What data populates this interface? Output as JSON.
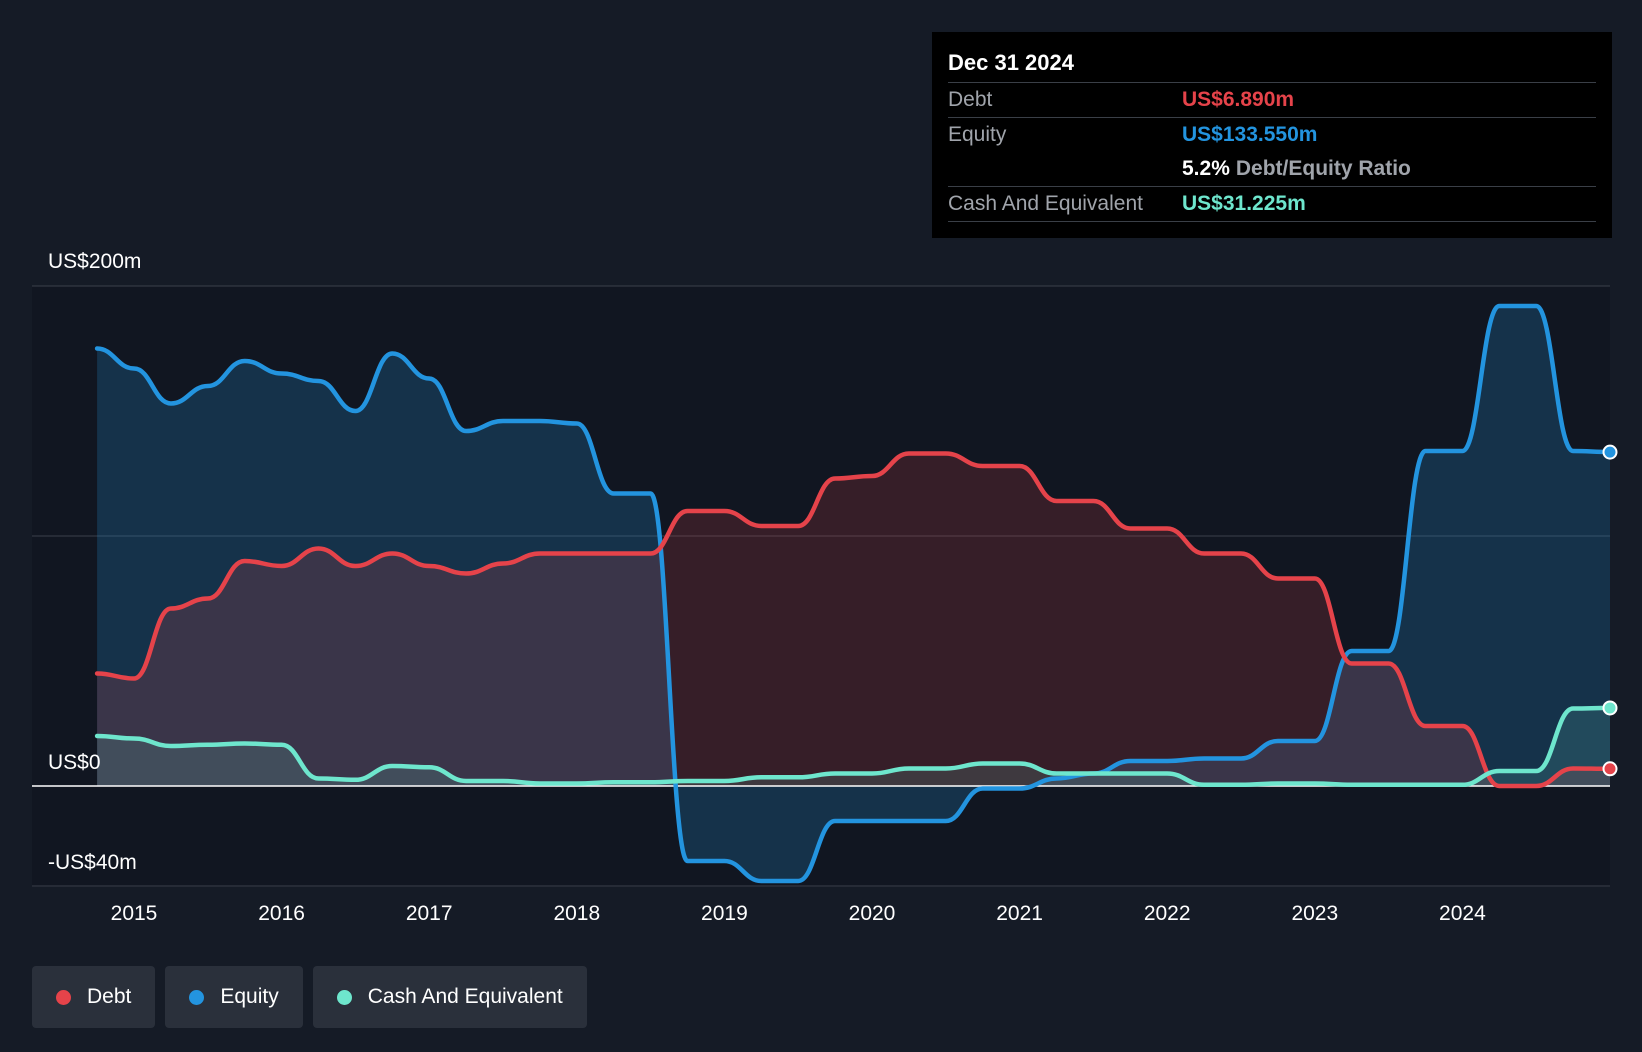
{
  "tooltip": {
    "date": "Dec 31 2024",
    "debt_label": "Debt",
    "debt_value": "US$6.890m",
    "equity_label": "Equity",
    "equity_value": "US$133.550m",
    "ratio_value": "5.2%",
    "ratio_label": "Debt/Equity Ratio",
    "cash_label": "Cash And Equivalent",
    "cash_value": "US$31.225m"
  },
  "axis": {
    "y_top_label": "US$200m",
    "y_zero_label": "US$0",
    "y_bottom_label": "-US$40m"
  },
  "legend": [
    {
      "label": "Debt"
    },
    {
      "label": "Equity"
    },
    {
      "label": "Cash And Equivalent"
    }
  ],
  "colors": {
    "debt": "#e5434a",
    "equity": "#2394df",
    "cash": "#6ee6cd",
    "background": "#151b26"
  },
  "chart_data": {
    "type": "area",
    "x_ticks": [
      2015,
      2016,
      2017,
      2018,
      2019,
      2020,
      2021,
      2022,
      2023,
      2024
    ],
    "ylim": [
      -40,
      200
    ],
    "y_ticks": [
      -40,
      0,
      100,
      200
    ],
    "grid": true,
    "legend_position": "bottom-left",
    "series": [
      {
        "name": "Debt",
        "points": [
          [
            2014.75,
            45
          ],
          [
            2015.0,
            43
          ],
          [
            2015.25,
            71
          ],
          [
            2015.5,
            75
          ],
          [
            2015.75,
            90
          ],
          [
            2016.0,
            88
          ],
          [
            2016.25,
            95
          ],
          [
            2016.5,
            88
          ],
          [
            2016.75,
            93
          ],
          [
            2017.0,
            88
          ],
          [
            2017.25,
            85
          ],
          [
            2017.5,
            89
          ],
          [
            2017.75,
            93
          ],
          [
            2018.0,
            93
          ],
          [
            2018.25,
            93
          ],
          [
            2018.5,
            93
          ],
          [
            2018.75,
            110
          ],
          [
            2019.0,
            110
          ],
          [
            2019.25,
            104
          ],
          [
            2019.5,
            104
          ],
          [
            2019.75,
            123
          ],
          [
            2020.0,
            124
          ],
          [
            2020.25,
            133
          ],
          [
            2020.5,
            133
          ],
          [
            2020.75,
            128
          ],
          [
            2021.0,
            128
          ],
          [
            2021.25,
            114
          ],
          [
            2021.5,
            114
          ],
          [
            2021.75,
            103
          ],
          [
            2022.0,
            103
          ],
          [
            2022.25,
            93
          ],
          [
            2022.5,
            93
          ],
          [
            2022.75,
            83
          ],
          [
            2023.0,
            83
          ],
          [
            2023.25,
            49
          ],
          [
            2023.5,
            49
          ],
          [
            2023.75,
            24
          ],
          [
            2024.0,
            24
          ],
          [
            2024.25,
            0
          ],
          [
            2024.5,
            0
          ],
          [
            2024.75,
            7
          ],
          [
            2025.0,
            6.89
          ]
        ]
      },
      {
        "name": "Equity",
        "points": [
          [
            2014.75,
            175
          ],
          [
            2015.0,
            167
          ],
          [
            2015.25,
            153
          ],
          [
            2015.5,
            160
          ],
          [
            2015.75,
            170
          ],
          [
            2016.0,
            165
          ],
          [
            2016.25,
            162
          ],
          [
            2016.5,
            150
          ],
          [
            2016.75,
            173
          ],
          [
            2017.0,
            163
          ],
          [
            2017.25,
            142
          ],
          [
            2017.5,
            146
          ],
          [
            2017.75,
            146
          ],
          [
            2018.0,
            145
          ],
          [
            2018.25,
            117
          ],
          [
            2018.5,
            117
          ],
          [
            2018.75,
            -30
          ],
          [
            2019.0,
            -30
          ],
          [
            2019.25,
            -38
          ],
          [
            2019.5,
            -38
          ],
          [
            2019.75,
            -14
          ],
          [
            2020.0,
            -14
          ],
          [
            2020.25,
            -14
          ],
          [
            2020.5,
            -14
          ],
          [
            2020.75,
            -1
          ],
          [
            2021.0,
            -1
          ],
          [
            2021.25,
            3
          ],
          [
            2021.5,
            5
          ],
          [
            2021.75,
            10
          ],
          [
            2022.0,
            10
          ],
          [
            2022.25,
            11
          ],
          [
            2022.5,
            11
          ],
          [
            2022.75,
            18
          ],
          [
            2023.0,
            18
          ],
          [
            2023.25,
            54
          ],
          [
            2023.5,
            54
          ],
          [
            2023.75,
            134
          ],
          [
            2024.0,
            134
          ],
          [
            2024.25,
            192
          ],
          [
            2024.5,
            192
          ],
          [
            2024.75,
            134
          ],
          [
            2025.0,
            133.55
          ]
        ]
      },
      {
        "name": "Cash And Equivalent",
        "points": [
          [
            2014.75,
            20
          ],
          [
            2015.0,
            19
          ],
          [
            2015.25,
            16
          ],
          [
            2015.5,
            16.5
          ],
          [
            2015.75,
            17
          ],
          [
            2016.0,
            16.5
          ],
          [
            2016.25,
            3
          ],
          [
            2016.5,
            2.5
          ],
          [
            2016.75,
            8
          ],
          [
            2017.0,
            7.5
          ],
          [
            2017.25,
            2
          ],
          [
            2017.5,
            2
          ],
          [
            2017.75,
            1
          ],
          [
            2018.0,
            1
          ],
          [
            2018.25,
            1.5
          ],
          [
            2018.5,
            1.5
          ],
          [
            2018.75,
            2
          ],
          [
            2019.0,
            2
          ],
          [
            2019.25,
            3.5
          ],
          [
            2019.5,
            3.5
          ],
          [
            2019.75,
            5
          ],
          [
            2020.0,
            5
          ],
          [
            2020.25,
            7
          ],
          [
            2020.5,
            7
          ],
          [
            2020.75,
            9
          ],
          [
            2021.0,
            9
          ],
          [
            2021.25,
            5
          ],
          [
            2021.5,
            5
          ],
          [
            2021.75,
            5
          ],
          [
            2022.0,
            5
          ],
          [
            2022.25,
            0.5
          ],
          [
            2022.5,
            0.5
          ],
          [
            2022.75,
            1
          ],
          [
            2023.0,
            1
          ],
          [
            2023.25,
            0.5
          ],
          [
            2023.5,
            0.5
          ],
          [
            2023.75,
            0.5
          ],
          [
            2024.0,
            0.5
          ],
          [
            2024.25,
            6
          ],
          [
            2024.5,
            6
          ],
          [
            2024.75,
            31
          ],
          [
            2025.0,
            31.225
          ]
        ]
      }
    ]
  }
}
